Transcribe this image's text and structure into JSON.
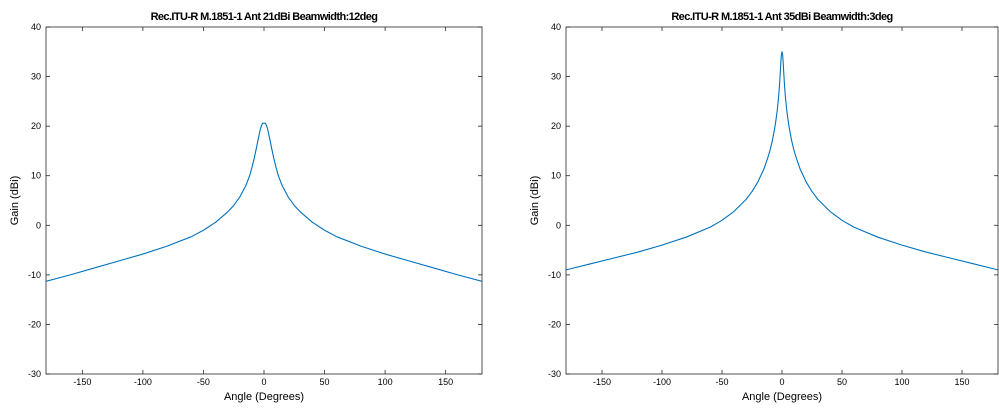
{
  "figure_bg": "#ffffff",
  "chart_data": [
    {
      "type": "line",
      "title": "Rec.ITU-R M.1851-1 Ant 21dBi Beamwidth:12deg",
      "xlabel": "Angle (Degrees)",
      "ylabel": "Gain (dBi)",
      "xlim": [
        -180,
        180
      ],
      "ylim": [
        -30,
        40
      ],
      "xticks": [
        -150,
        -100,
        -50,
        0,
        50,
        100,
        150
      ],
      "yticks": [
        -30,
        -20,
        -10,
        0,
        10,
        20,
        30,
        40
      ],
      "grid": false,
      "line_color": "#0072bd",
      "x": [
        -180,
        -160,
        -140,
        -120,
        -100,
        -80,
        -60,
        -50,
        -40,
        -30,
        -25,
        -20,
        -15,
        -12,
        -10,
        -8,
        -6,
        -5,
        -4,
        -3,
        -2,
        -1,
        0,
        1,
        2,
        3,
        4,
        5,
        6,
        8,
        10,
        12,
        15,
        20,
        25,
        30,
        40,
        50,
        60,
        80,
        100,
        120,
        140,
        160,
        180
      ],
      "y": [
        -11.3,
        -10.0,
        -8.6,
        -7.2,
        -5.8,
        -4.2,
        -2.3,
        -1.0,
        0.6,
        2.7,
        4.0,
        5.7,
        8.0,
        9.9,
        11.6,
        13.6,
        15.9,
        17.1,
        18.3,
        19.4,
        20.2,
        20.6,
        20.6,
        20.6,
        20.2,
        19.4,
        18.3,
        17.1,
        15.9,
        13.6,
        11.6,
        9.9,
        8.0,
        5.7,
        4.0,
        2.7,
        0.6,
        -1.0,
        -2.3,
        -4.2,
        -5.8,
        -7.2,
        -8.6,
        -10.0,
        -11.3
      ]
    },
    {
      "type": "line",
      "title": "Rec.ITU-R M.1851-1 Ant 35dBi Beamwidth:3deg",
      "xlabel": "Angle (Degrees)",
      "ylabel": "Gain (dBi)",
      "xlim": [
        -180,
        180
      ],
      "ylim": [
        -30,
        40
      ],
      "xticks": [
        -150,
        -100,
        -50,
        0,
        50,
        100,
        150
      ],
      "yticks": [
        -30,
        -20,
        -10,
        0,
        10,
        20,
        30,
        40
      ],
      "grid": false,
      "line_color": "#0072bd",
      "x": [
        -180,
        -160,
        -140,
        -120,
        -100,
        -80,
        -60,
        -50,
        -40,
        -30,
        -25,
        -20,
        -15,
        -12,
        -10,
        -8,
        -6,
        -5,
        -4,
        -3,
        -2.5,
        -2,
        -1.5,
        -1,
        -0.5,
        0,
        0.5,
        1,
        1.5,
        2,
        2.5,
        3,
        4,
        5,
        6,
        8,
        10,
        12,
        15,
        20,
        25,
        30,
        40,
        50,
        60,
        80,
        100,
        120,
        140,
        160,
        180
      ],
      "y": [
        -9.0,
        -7.8,
        -6.6,
        -5.4,
        -4.0,
        -2.4,
        -0.4,
        1.0,
        2.8,
        5.2,
        6.8,
        8.8,
        11.4,
        13.5,
        15.1,
        17.1,
        19.7,
        21.3,
        23.1,
        25.5,
        26.9,
        28.6,
        30.6,
        32.8,
        34.4,
        35.0,
        34.4,
        32.8,
        30.6,
        28.6,
        26.9,
        25.5,
        23.1,
        21.3,
        19.7,
        17.1,
        15.1,
        13.5,
        11.4,
        8.8,
        6.8,
        5.2,
        2.8,
        1.0,
        -0.4,
        -2.4,
        -4.0,
        -5.4,
        -6.6,
        -7.8,
        -9.0
      ]
    }
  ]
}
